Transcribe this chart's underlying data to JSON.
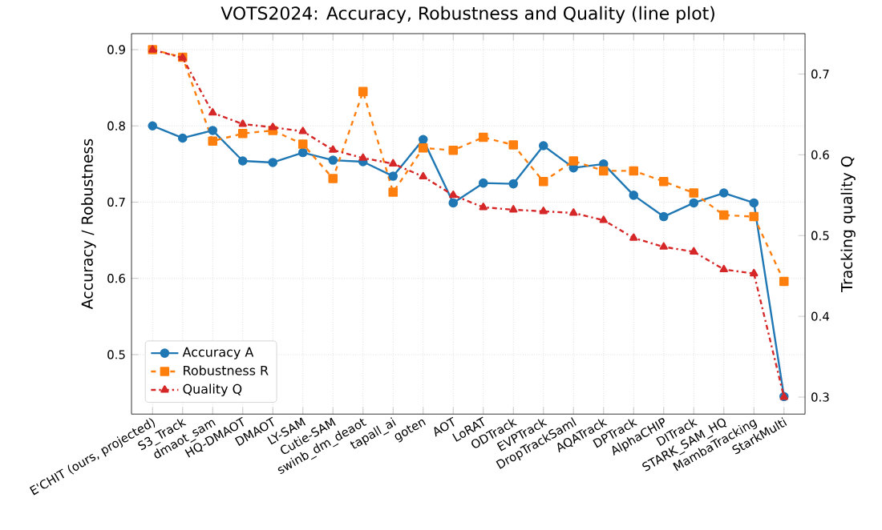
{
  "chart_data": {
    "type": "line",
    "title": "VOTS2024: Accuracy, Robustness and Quality (line plot)",
    "ylabel": "Accuracy / Robustness",
    "y2label": "Tracking quality Q",
    "categories": [
      "E'CHIT (ours, projected)",
      "S3_Track",
      "dmaot_sam",
      "HQ-DMAOT",
      "DMAOT",
      "LY-SAM",
      "Cutie-SAM",
      "swinb_dm_deaot",
      "tapall_ai",
      "goten",
      "AOT",
      "LoRAT",
      "ODTrack",
      "EVPTrack",
      "DropTrackSaml",
      "AQATrack",
      "DPTrack",
      "AlphaCHIP",
      "DITrack",
      "STARK_SAM_HQ",
      "MambaTracking",
      "StarkMulti"
    ],
    "series": [
      {
        "name": "Accuracy A",
        "color": "#1f77b4",
        "marker": "circle",
        "line_style": "solid",
        "values": [
          0.8,
          0.784,
          0.794,
          0.754,
          0.752,
          0.765,
          0.755,
          0.753,
          0.734,
          0.782,
          0.699,
          0.725,
          0.724,
          0.774,
          0.745,
          0.75,
          0.709,
          0.681,
          0.699,
          0.712,
          0.699,
          0.445
        ]
      },
      {
        "name": "Robustness R",
        "color": "#ff7f0e",
        "marker": "square",
        "line_style": "dashed",
        "values": [
          0.9,
          0.89,
          0.78,
          0.79,
          0.794,
          0.776,
          0.731,
          0.845,
          0.713,
          0.771,
          0.768,
          0.785,
          0.775,
          0.727,
          0.754,
          0.741,
          0.741,
          0.727,
          0.712,
          0.683,
          0.681,
          0.596
        ]
      },
      {
        "name": "Quality Q",
        "color": "#d62728",
        "marker": "triangle",
        "line_style": "dashdot",
        "axis": "y2",
        "values": [
          0.73,
          0.72,
          0.652,
          0.638,
          0.634,
          0.629,
          0.606,
          0.596,
          0.589,
          0.573,
          0.55,
          0.535,
          0.532,
          0.53,
          0.528,
          0.519,
          0.497,
          0.486,
          0.48,
          0.458,
          0.453,
          0.3
        ]
      }
    ],
    "ylim": [
      0.422,
      0.921
    ],
    "yticks": [
      0.5,
      0.6,
      0.7,
      0.8,
      0.9
    ],
    "y2lim": [
      0.279,
      0.75
    ],
    "y2ticks": [
      0.3,
      0.4,
      0.5,
      0.6,
      0.7
    ],
    "grid": true,
    "legend": "bottom left"
  }
}
